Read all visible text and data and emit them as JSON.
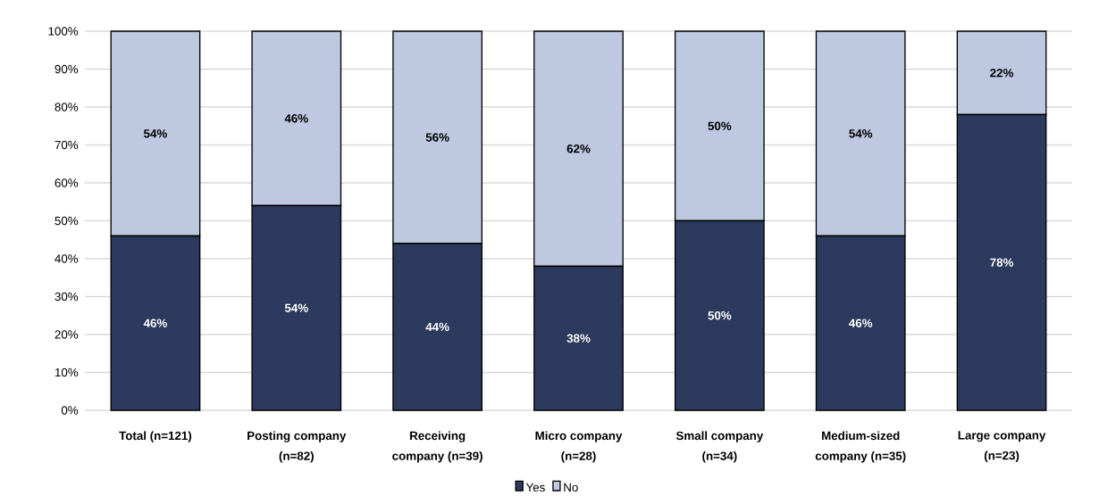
{
  "chart_data": {
    "type": "bar",
    "stacked": true,
    "categories": [
      "Total (n=121)",
      "Posting company (n=82)",
      "Receiving company (n=39)",
      "Micro company (n=28)",
      "Small company (n=34)",
      "Medium-sized company (n=35)",
      "Large company (n=23)"
    ],
    "series": [
      {
        "name": "Yes",
        "color": "#2c3a5d",
        "values": [
          46,
          54,
          44,
          38,
          50,
          46,
          78
        ],
        "value_labels": [
          "46%",
          "54%",
          "44%",
          "38%",
          "50%",
          "46%",
          "78%"
        ]
      },
      {
        "name": "No",
        "color": "#bec8e1",
        "values": [
          54,
          46,
          56,
          62,
          50,
          54,
          22
        ],
        "value_labels": [
          "54%",
          "46%",
          "56%",
          "62%",
          "50%",
          "54%",
          "22%"
        ]
      }
    ],
    "ylim": [
      0,
      100
    ],
    "yticks": [
      {
        "value": 0,
        "label": "0%"
      },
      {
        "value": 10,
        "label": "10%"
      },
      {
        "value": 20,
        "label": "20%"
      },
      {
        "value": 30,
        "label": "30%"
      },
      {
        "value": 40,
        "label": "40%"
      },
      {
        "value": 50,
        "label": "50%"
      },
      {
        "value": 60,
        "label": "60%"
      },
      {
        "value": 70,
        "label": "70%"
      },
      {
        "value": 80,
        "label": "80%"
      },
      {
        "value": 90,
        "label": "90%"
      },
      {
        "value": 100,
        "label": "100%"
      }
    ],
    "grid": "y",
    "legend": "bottom"
  }
}
